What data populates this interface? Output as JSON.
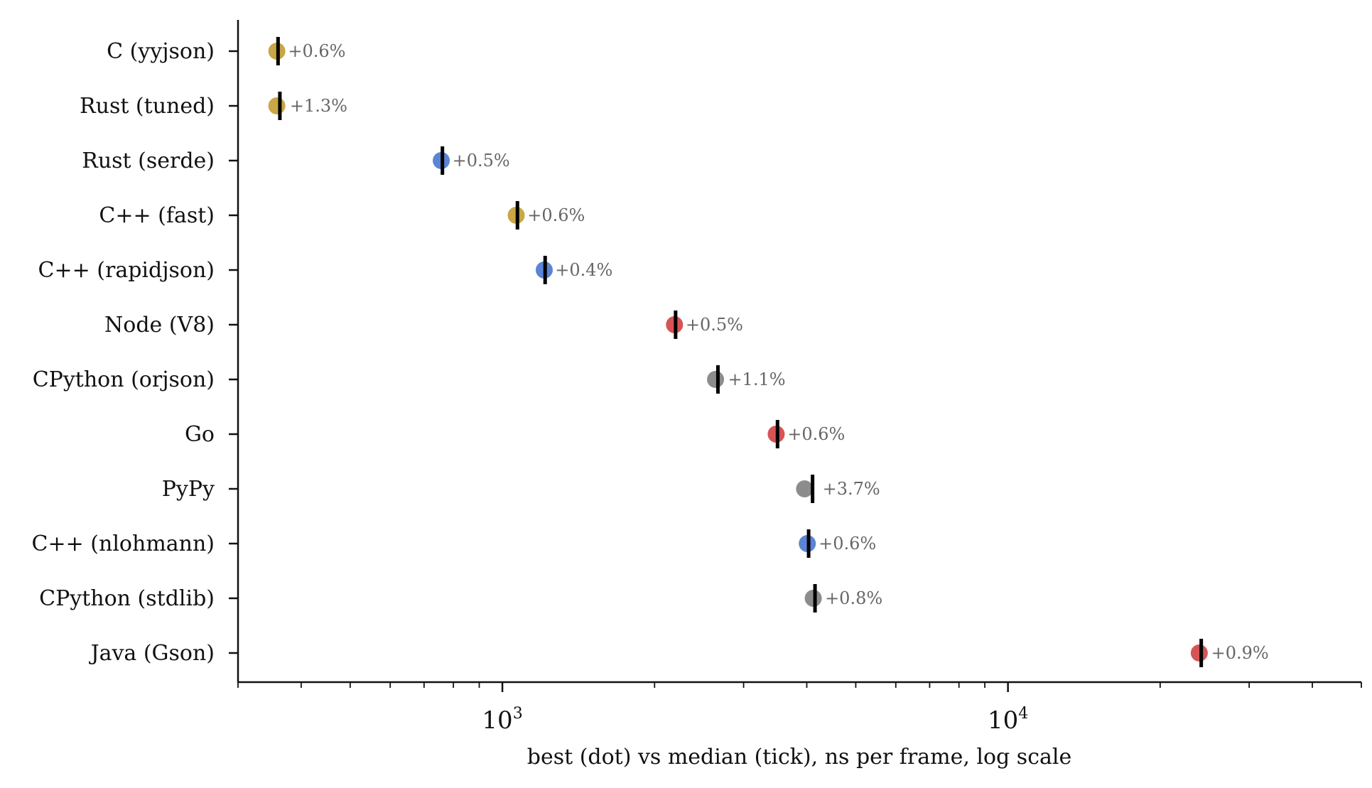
{
  "chart_data": {
    "type": "scatter",
    "xlabel": "best (dot) vs median (tick), ns per frame, log scale",
    "x_scale": "log",
    "xlim": [
      300,
      50000
    ],
    "x_major_ticks": [
      {
        "value": 1000,
        "base": "10",
        "exp": "3"
      },
      {
        "value": 10000,
        "base": "10",
        "exp": "4"
      }
    ],
    "grid": false,
    "legend": "none",
    "colors": {
      "gold": "#c9a646",
      "blue": "#5b84d4",
      "red": "#d65454",
      "gray": "#8c8c8c",
      "tick": "#000000"
    },
    "series": [
      {
        "label": "C (yyjson)",
        "best": 358,
        "median": 360,
        "annotation": "+0.6%",
        "color": "gold"
      },
      {
        "label": "Rust (tuned)",
        "best": 358,
        "median": 363,
        "annotation": "+1.3%",
        "color": "gold"
      },
      {
        "label": "Rust (serde)",
        "best": 757,
        "median": 761,
        "annotation": "+0.5%",
        "color": "blue"
      },
      {
        "label": "C++ (fast)",
        "best": 1065,
        "median": 1071,
        "annotation": "+0.6%",
        "color": "gold"
      },
      {
        "label": "C++ (rapidjson)",
        "best": 1210,
        "median": 1215,
        "annotation": "+0.4%",
        "color": "blue"
      },
      {
        "label": "Node (V8)",
        "best": 2190,
        "median": 2201,
        "annotation": "+0.5%",
        "color": "red"
      },
      {
        "label": "CPython (orjson)",
        "best": 2640,
        "median": 2669,
        "annotation": "+1.1%",
        "color": "gray"
      },
      {
        "label": "Go",
        "best": 3480,
        "median": 3501,
        "annotation": "+0.6%",
        "color": "red"
      },
      {
        "label": "PyPy",
        "best": 3960,
        "median": 4107,
        "annotation": "+3.7%",
        "color": "gray"
      },
      {
        "label": "C++ (nlohmann)",
        "best": 4010,
        "median": 4034,
        "annotation": "+0.6%",
        "color": "blue"
      },
      {
        "label": "CPython (stdlib)",
        "best": 4120,
        "median": 4153,
        "annotation": "+0.8%",
        "color": "gray"
      },
      {
        "label": "Java (Gson)",
        "best": 23900,
        "median": 24115,
        "annotation": "+0.9%",
        "color": "red"
      }
    ]
  }
}
